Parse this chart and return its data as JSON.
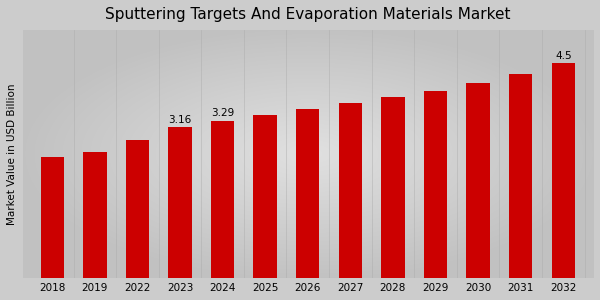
{
  "title": "Sputtering Targets And Evaporation Materials Market",
  "ylabel": "Market Value in USD Billion",
  "categories": [
    "2018",
    "2019",
    "2022",
    "2023",
    "2024",
    "2025",
    "2026",
    "2027",
    "2028",
    "2029",
    "2030",
    "2031",
    "2032"
  ],
  "values": [
    2.55,
    2.65,
    2.9,
    3.16,
    3.29,
    3.42,
    3.55,
    3.68,
    3.8,
    3.93,
    4.1,
    4.28,
    4.5
  ],
  "bar_color": "#cc0000",
  "bg_center": "#e0e0e0",
  "bg_edge": "#b0b0b0",
  "annotated": {
    "2023": "3.16",
    "2024": "3.29",
    "2032": "4.5"
  },
  "ylim": [
    0,
    5.2
  ],
  "title_fontsize": 11,
  "label_fontsize": 7.5,
  "tick_fontsize": 7.5,
  "bar_width": 0.55,
  "bottom_strip_color": "#cc0000"
}
